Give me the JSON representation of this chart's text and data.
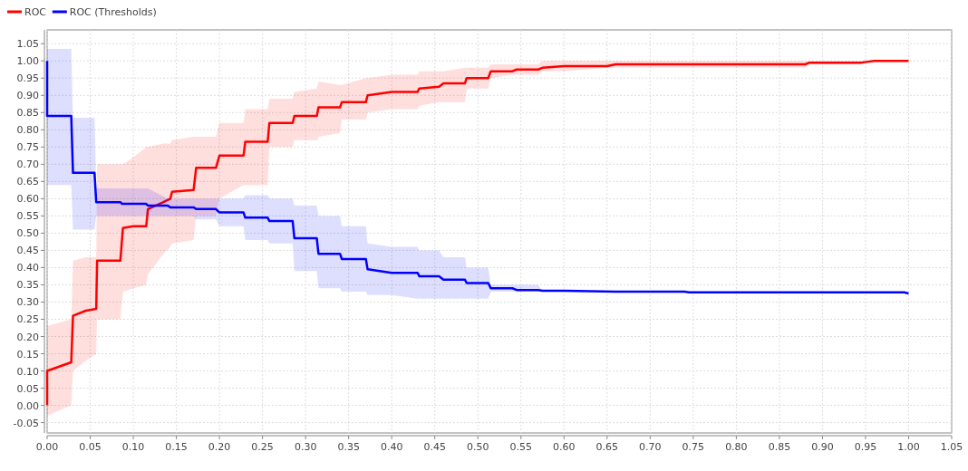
{
  "chart_data": {
    "type": "line",
    "xlim": [
      0,
      1.05
    ],
    "ylim": [
      -0.08,
      1.09
    ],
    "xticks": [
      {
        "value": 0,
        "label": "0.00"
      },
      {
        "value": 0.05,
        "label": "0.05"
      },
      {
        "value": 0.1,
        "label": "0.10"
      },
      {
        "value": 0.15,
        "label": "0.15"
      },
      {
        "value": 0.2,
        "label": "0.20"
      },
      {
        "value": 0.25,
        "label": "0.25"
      },
      {
        "value": 0.3,
        "label": "0.30"
      },
      {
        "value": 0.35,
        "label": "0.35"
      },
      {
        "value": 0.4,
        "label": "0.40"
      },
      {
        "value": 0.45,
        "label": "0.45"
      },
      {
        "value": 0.5,
        "label": "0.50"
      },
      {
        "value": 0.55,
        "label": "0.55"
      },
      {
        "value": 0.6,
        "label": "0.60"
      },
      {
        "value": 0.65,
        "label": "0.65"
      },
      {
        "value": 0.7,
        "label": "0.70"
      },
      {
        "value": 0.75,
        "label": "0.75"
      },
      {
        "value": 0.8,
        "label": "0.80"
      },
      {
        "value": 0.85,
        "label": "0.85"
      },
      {
        "value": 0.9,
        "label": "0.90"
      },
      {
        "value": 0.95,
        "label": "0.95"
      },
      {
        "value": 1,
        "label": "1.00"
      },
      {
        "value": 1.05,
        "label": "1.05"
      }
    ],
    "yticks": [
      {
        "value": -0.05,
        "label": "-0.05"
      },
      {
        "value": 0,
        "label": "0.00"
      },
      {
        "value": 0.05,
        "label": "0.05"
      },
      {
        "value": 0.1,
        "label": "0.10"
      },
      {
        "value": 0.15,
        "label": "0.15"
      },
      {
        "value": 0.2,
        "label": "0.20"
      },
      {
        "value": 0.25,
        "label": "0.25"
      },
      {
        "value": 0.3,
        "label": "0.30"
      },
      {
        "value": 0.35,
        "label": "0.35"
      },
      {
        "value": 0.4,
        "label": "0.40"
      },
      {
        "value": 0.45,
        "label": "0.45"
      },
      {
        "value": 0.5,
        "label": "0.50"
      },
      {
        "value": 0.55,
        "label": "0.55"
      },
      {
        "value": 0.6,
        "label": "0.60"
      },
      {
        "value": 0.65,
        "label": "0.65"
      },
      {
        "value": 0.7,
        "label": "0.70"
      },
      {
        "value": 0.75,
        "label": "0.75"
      },
      {
        "value": 0.8,
        "label": "0.80"
      },
      {
        "value": 0.85,
        "label": "0.85"
      },
      {
        "value": 0.9,
        "label": "0.90"
      },
      {
        "value": 0.95,
        "label": "0.95"
      },
      {
        "value": 1,
        "label": "1.00"
      },
      {
        "value": 1.05,
        "label": "1.05"
      }
    ],
    "grid": true,
    "legend": "top left",
    "marker": "none",
    "line_style": "solid",
    "series": [
      {
        "name": "ROC",
        "color": "#ff0000",
        "x": [
          0,
          0,
          0.028,
          0.03,
          0.045,
          0.057,
          0.058,
          0.085,
          0.088,
          0.1,
          0.115,
          0.117,
          0.135,
          0.143,
          0.145,
          0.17,
          0.173,
          0.196,
          0.2,
          0.228,
          0.23,
          0.256,
          0.258,
          0.285,
          0.287,
          0.313,
          0.315,
          0.34,
          0.342,
          0.37,
          0.372,
          0.4,
          0.43,
          0.432,
          0.455,
          0.46,
          0.485,
          0.487,
          0.512,
          0.515,
          0.54,
          0.545,
          0.57,
          0.575,
          0.6,
          0.65,
          0.66,
          0.88,
          0.885,
          0.945,
          0.96,
          1.0
        ],
        "values": [
          0,
          0.1,
          0.125,
          0.26,
          0.275,
          0.28,
          0.42,
          0.42,
          0.515,
          0.52,
          0.52,
          0.57,
          0.59,
          0.6,
          0.62,
          0.625,
          0.69,
          0.69,
          0.725,
          0.725,
          0.765,
          0.765,
          0.82,
          0.82,
          0.84,
          0.84,
          0.865,
          0.865,
          0.88,
          0.88,
          0.9,
          0.91,
          0.91,
          0.92,
          0.925,
          0.935,
          0.935,
          0.95,
          0.95,
          0.97,
          0.97,
          0.975,
          0.975,
          0.98,
          0.985,
          0.985,
          0.99,
          0.99,
          0.995,
          0.995,
          1.0,
          1.0
        ],
        "lower": [
          -0.03,
          -0.03,
          0,
          0.1,
          0.13,
          0.15,
          0.25,
          0.25,
          0.33,
          0.34,
          0.35,
          0.38,
          0.44,
          0.46,
          0.47,
          0.48,
          0.55,
          0.55,
          0.6,
          0.64,
          0.64,
          0.64,
          0.75,
          0.75,
          0.77,
          0.77,
          0.78,
          0.79,
          0.83,
          0.83,
          0.85,
          0.86,
          0.86,
          0.87,
          0.88,
          0.88,
          0.88,
          0.92,
          0.92,
          0.95,
          0.96,
          0.96,
          0.96,
          0.97,
          0.97,
          0.98,
          0.98,
          0.98,
          0.99,
          0.99,
          1.0,
          1.0
        ],
        "upper": [
          0.23,
          0.23,
          0.25,
          0.42,
          0.43,
          0.43,
          0.7,
          0.7,
          0.7,
          0.72,
          0.75,
          0.75,
          0.76,
          0.76,
          0.77,
          0.78,
          0.78,
          0.78,
          0.82,
          0.82,
          0.86,
          0.86,
          0.89,
          0.89,
          0.91,
          0.92,
          0.94,
          0.93,
          0.93,
          0.95,
          0.95,
          0.96,
          0.96,
          0.97,
          0.97,
          0.97,
          0.98,
          0.98,
          0.98,
          0.99,
          0.99,
          0.99,
          0.99,
          1.0,
          1.0,
          1.0,
          1.0,
          1.0,
          1.0,
          1.0,
          1.0,
          1.0
        ]
      },
      {
        "name": "ROC (Thresholds)",
        "color": "#0000ff",
        "x": [
          0,
          0,
          0.028,
          0.03,
          0.055,
          0.057,
          0.085,
          0.087,
          0.115,
          0.117,
          0.14,
          0.143,
          0.17,
          0.173,
          0.196,
          0.2,
          0.228,
          0.23,
          0.256,
          0.258,
          0.285,
          0.287,
          0.313,
          0.315,
          0.34,
          0.342,
          0.37,
          0.372,
          0.4,
          0.43,
          0.432,
          0.455,
          0.46,
          0.485,
          0.487,
          0.512,
          0.515,
          0.54,
          0.545,
          0.57,
          0.575,
          0.6,
          0.66,
          0.74,
          0.745,
          0.995,
          1.0
        ],
        "values": [
          1.0,
          0.84,
          0.84,
          0.675,
          0.675,
          0.59,
          0.59,
          0.585,
          0.585,
          0.58,
          0.58,
          0.575,
          0.575,
          0.57,
          0.57,
          0.56,
          0.56,
          0.545,
          0.545,
          0.535,
          0.535,
          0.485,
          0.485,
          0.44,
          0.44,
          0.425,
          0.425,
          0.395,
          0.385,
          0.385,
          0.375,
          0.375,
          0.365,
          0.365,
          0.355,
          0.355,
          0.34,
          0.34,
          0.335,
          0.335,
          0.333,
          0.333,
          0.33,
          0.33,
          0.328,
          0.328,
          0.325
        ],
        "lower": [
          0.64,
          0.64,
          0.64,
          0.51,
          0.51,
          0.55,
          0.55,
          0.55,
          0.55,
          0.55,
          0.55,
          0.55,
          0.55,
          0.54,
          0.54,
          0.52,
          0.52,
          0.48,
          0.48,
          0.47,
          0.47,
          0.39,
          0.39,
          0.34,
          0.34,
          0.33,
          0.33,
          0.32,
          0.32,
          0.31,
          0.31,
          0.31,
          0.31,
          0.31,
          0.31,
          0.31,
          0.33,
          0.33,
          0.33,
          0.33,
          0.333,
          0.333,
          0.33,
          0.33,
          0.328,
          0.328,
          0.325
        ],
        "upper": [
          1.035,
          1.035,
          1.035,
          0.835,
          0.835,
          0.63,
          0.63,
          0.63,
          0.63,
          0.63,
          0.6,
          0.6,
          0.6,
          0.6,
          0.6,
          0.6,
          0.6,
          0.61,
          0.61,
          0.6,
          0.6,
          0.58,
          0.58,
          0.55,
          0.55,
          0.52,
          0.52,
          0.47,
          0.46,
          0.46,
          0.45,
          0.45,
          0.43,
          0.43,
          0.4,
          0.4,
          0.35,
          0.35,
          0.35,
          0.35,
          0.333,
          0.333,
          0.33,
          0.33,
          0.328,
          0.328,
          0.325
        ]
      }
    ]
  }
}
